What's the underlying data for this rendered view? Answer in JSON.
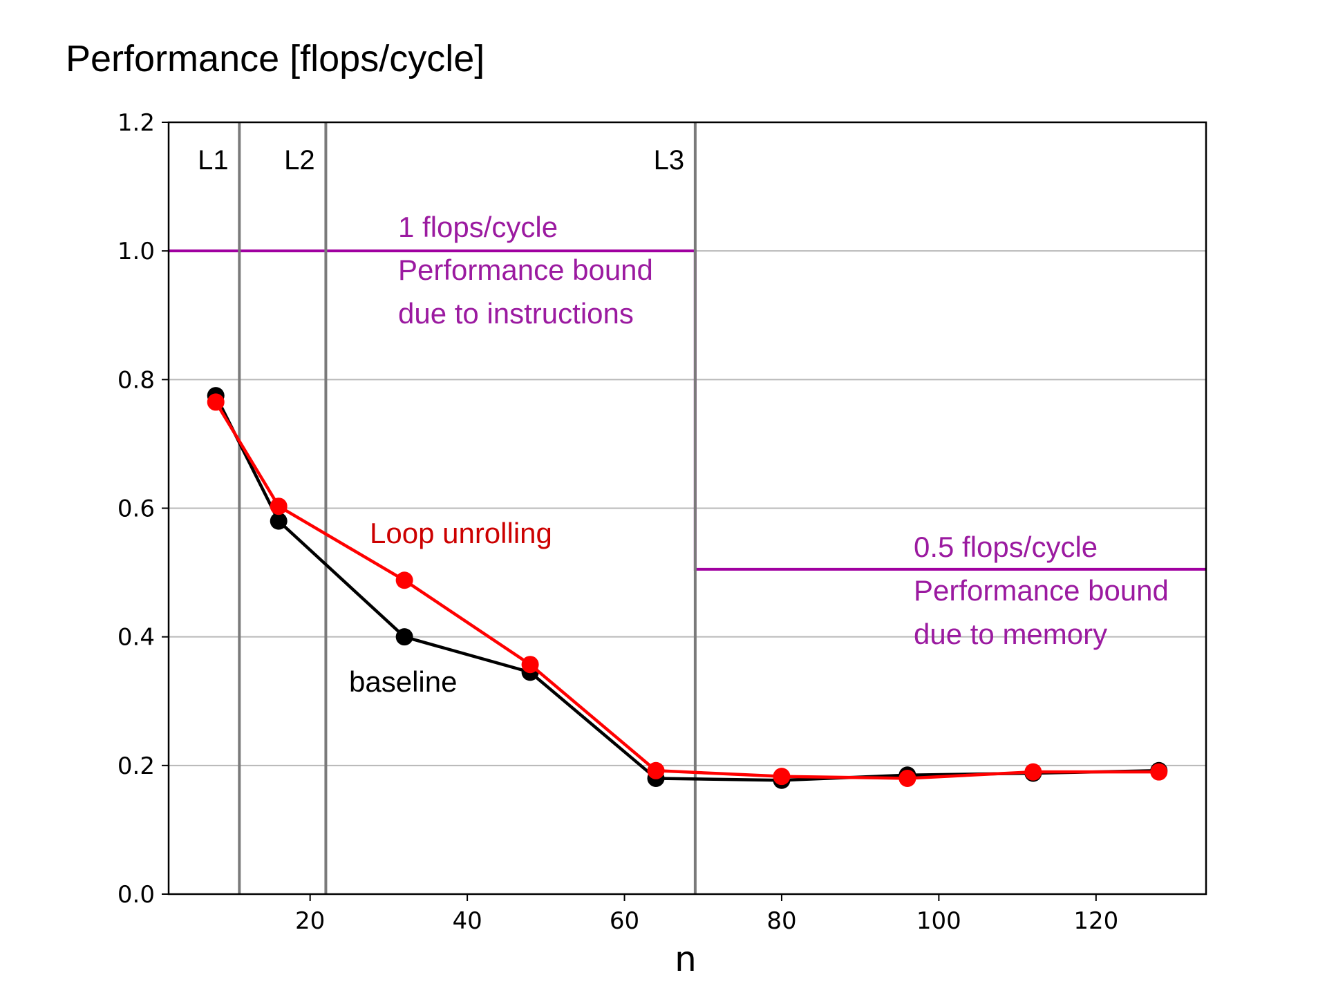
{
  "chart_data": {
    "type": "line",
    "title": "Performance [flops/cycle]",
    "xlabel": "n",
    "ylabel": "",
    "xlim": [
      2,
      134
    ],
    "ylim": [
      0,
      1.2
    ],
    "x_ticks": [
      20,
      40,
      60,
      80,
      100,
      120
    ],
    "y_ticks": [
      0.0,
      0.2,
      0.4,
      0.6,
      0.8,
      1.0,
      1.2
    ],
    "x_tick_labels": [
      "20",
      "40",
      "60",
      "80",
      "100",
      "120"
    ],
    "y_tick_labels": [
      "0.0",
      "0.2",
      "0.4",
      "0.6",
      "0.8",
      "1.0",
      "1.2"
    ],
    "grid": true,
    "series": [
      {
        "name": "baseline",
        "color": "#000000",
        "x": [
          8,
          16,
          32,
          48,
          64,
          80,
          96,
          112,
          128
        ],
        "y": [
          0.775,
          0.58,
          0.4,
          0.345,
          0.18,
          0.177,
          0.185,
          0.188,
          0.192
        ]
      },
      {
        "name": "Loop unrolling",
        "color": "#ff0000",
        "x": [
          8,
          16,
          32,
          48,
          64,
          80,
          96,
          112,
          128
        ],
        "y": [
          0.765,
          0.603,
          0.488,
          0.357,
          0.192,
          0.183,
          0.18,
          0.19,
          0.19
        ]
      }
    ],
    "cache_lines": [
      {
        "label": "L1",
        "x": 11
      },
      {
        "label": "L2",
        "x": 22
      },
      {
        "label": "L3",
        "x": 69
      }
    ],
    "bound": {
      "color": "#a000a0",
      "segments": [
        {
          "x0": 2,
          "x1": 69,
          "y": 1.0
        },
        {
          "x0": 69,
          "x1": 134,
          "y": 0.505
        }
      ],
      "annotations": [
        {
          "lines": [
            "1 flops/cycle",
            "Performance bound",
            "due to instructions"
          ]
        },
        {
          "lines": [
            "0.5 flops/cycle",
            "Performance bound",
            "due to memory"
          ]
        }
      ]
    },
    "series_labels": [
      {
        "text": "Loop unrolling",
        "color": "#cc0000"
      },
      {
        "text": "baseline",
        "color": "#000000"
      }
    ]
  }
}
